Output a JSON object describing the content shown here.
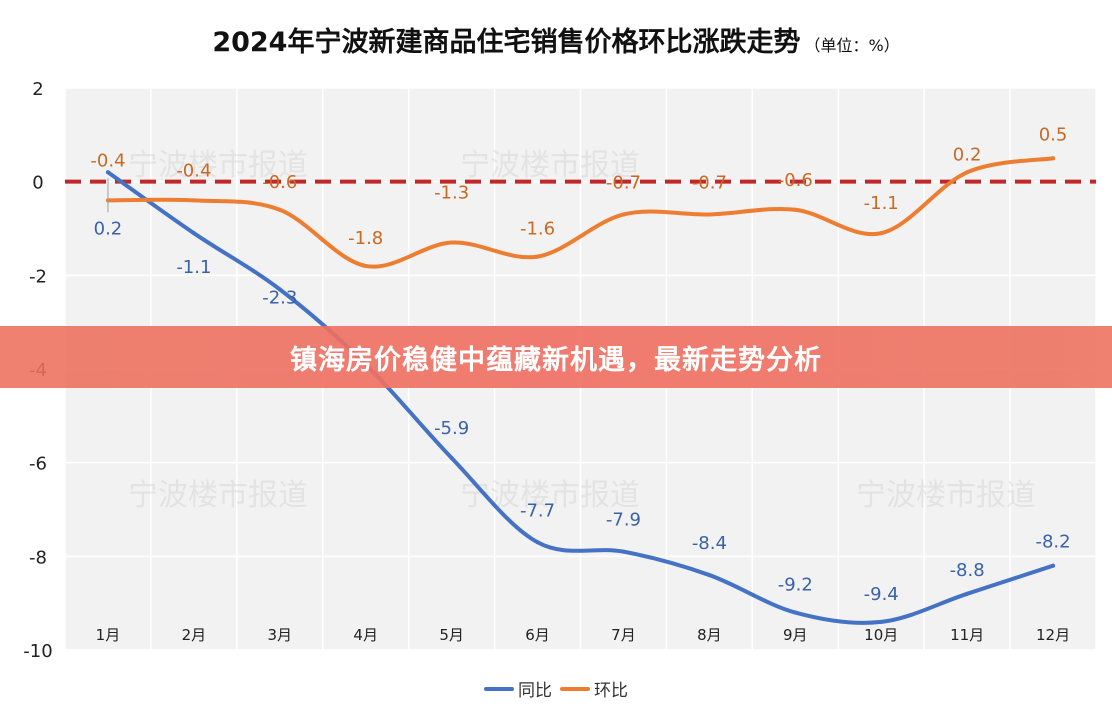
{
  "title": "2024年宁波新建商品住宅销售价格环比涨跌走势",
  "unit": "（单位：%）",
  "banner_text": "镇海房价稳健中蕴藏新机遇，最新走势分析",
  "watermark": "宁波楼市报道",
  "colors": {
    "yoy": "#4472c4",
    "mom": "#ed7d31",
    "zero_line": "#c0282a",
    "plot_bg": "#f2f2f2",
    "grid": "#ffffff"
  },
  "chart_data": {
    "type": "line",
    "categories": [
      "1月",
      "2月",
      "3月",
      "4月",
      "5月",
      "6月",
      "7月",
      "8月",
      "9月",
      "10月",
      "11月",
      "12月"
    ],
    "series": [
      {
        "name": "同比",
        "values": [
          0.2,
          -1.1,
          -2.3,
          -3.9,
          -5.9,
          -7.7,
          -7.9,
          -8.4,
          -9.2,
          -9.4,
          -8.8,
          -8.2
        ],
        "labels": [
          "0.2",
          "-1.1",
          "-2.3",
          "",
          "-5.9",
          "-7.7",
          "-7.9",
          "-8.4",
          "-9.2",
          "-9.4",
          "-8.8",
          "-8.2"
        ]
      },
      {
        "name": "环比",
        "values": [
          -0.4,
          -0.4,
          -0.6,
          -1.8,
          -1.3,
          -1.6,
          -0.7,
          -0.7,
          -0.6,
          -1.1,
          0.2,
          0.5
        ],
        "labels": [
          "-0.4",
          "-0.4",
          "-0.6",
          "-1.8",
          "-1.3",
          "-1.6",
          "-0.7",
          "-0.7",
          "-0.6",
          "-1.1",
          "0.2",
          "0.5"
        ]
      }
    ],
    "yticks": [
      "2",
      "0",
      "-2",
      "-4",
      "-6",
      "-8",
      "-10"
    ],
    "ylim": [
      -10,
      2
    ],
    "reference_line": 0,
    "legend": "bottom"
  }
}
